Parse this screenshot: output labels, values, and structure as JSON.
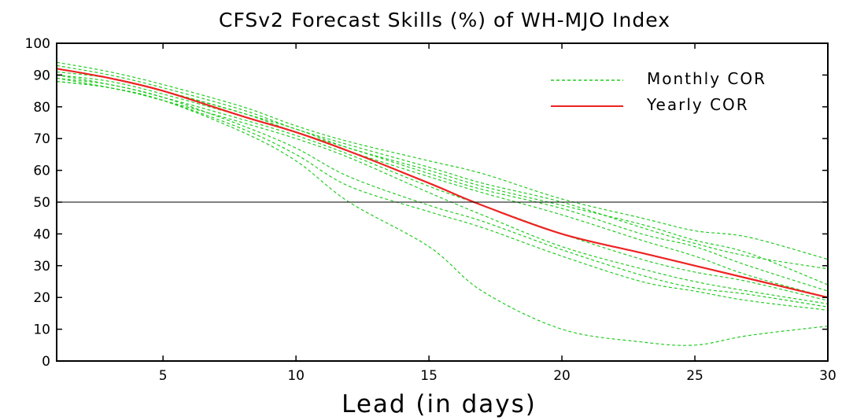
{
  "chart_data": {
    "type": "line",
    "title": "CFSv2 Forecast Skills (%) of WH-MJO Index",
    "xlabel": "Lead (in days)",
    "ylabel": "",
    "xlim": [
      1,
      30
    ],
    "ylim": [
      0,
      100
    ],
    "xticks": [
      5,
      10,
      15,
      20,
      25,
      30
    ],
    "yticks": [
      0,
      10,
      20,
      30,
      40,
      50,
      60,
      70,
      80,
      90,
      100
    ],
    "reference_line": 50,
    "legend_position": "top-right",
    "grid": false,
    "colors": {
      "monthly": "#22cc22",
      "yearly": "#ee2222",
      "reference": "#000000"
    },
    "x": [
      1,
      3,
      5,
      8,
      10,
      12,
      15,
      17,
      20,
      23,
      25,
      27,
      30
    ],
    "series": [
      {
        "name": "Monthly COR",
        "style": "dashed",
        "values": [
          94,
          91,
          87,
          80,
          74,
          69,
          63,
          59,
          51,
          45,
          41,
          39,
          32
        ]
      },
      {
        "name": "Monthly COR",
        "style": "dashed",
        "values": [
          93,
          90,
          86,
          79,
          73,
          68,
          61,
          56,
          50,
          42,
          37,
          33,
          29
        ]
      },
      {
        "name": "Monthly COR",
        "style": "dashed",
        "values": [
          92,
          89,
          85,
          78,
          73,
          67,
          60,
          55,
          49,
          43,
          38,
          34,
          24
        ]
      },
      {
        "name": "Monthly COR",
        "style": "dashed",
        "values": [
          91,
          89,
          85,
          78,
          72,
          67,
          59,
          54,
          48,
          40,
          36,
          30,
          22
        ]
      },
      {
        "name": "Monthly COR",
        "style": "dashed",
        "values": [
          90,
          88,
          84,
          77,
          72,
          66,
          58,
          53,
          46,
          38,
          33,
          27,
          20
        ]
      },
      {
        "name": "Monthly COR",
        "style": "dashed",
        "values": [
          89,
          87,
          83,
          76,
          71,
          65,
          55,
          49,
          40,
          32,
          28,
          25,
          19
        ]
      },
      {
        "name": "Monthly COR",
        "style": "dashed",
        "values": [
          88,
          86,
          82,
          75,
          70,
          64,
          53,
          46,
          36,
          29,
          25,
          22,
          18
        ]
      },
      {
        "name": "Monthly COR",
        "style": "dashed",
        "values": [
          90,
          87,
          83,
          74,
          67,
          58,
          49,
          44,
          35,
          27,
          23,
          21,
          17
        ]
      },
      {
        "name": "Monthly COR",
        "style": "dashed",
        "values": [
          89,
          86,
          82,
          73,
          65,
          55,
          47,
          42,
          33,
          25,
          22,
          19,
          16
        ]
      },
      {
        "name": "Monthly COR",
        "style": "dashed",
        "values": [
          88,
          86,
          82,
          72,
          63,
          50,
          36,
          22,
          10,
          6,
          5,
          8,
          11
        ]
      },
      {
        "name": "Yearly COR",
        "style": "solid",
        "values": [
          92,
          89,
          85,
          77,
          72,
          66,
          56,
          49,
          40,
          34,
          30,
          26,
          20
        ]
      }
    ]
  }
}
